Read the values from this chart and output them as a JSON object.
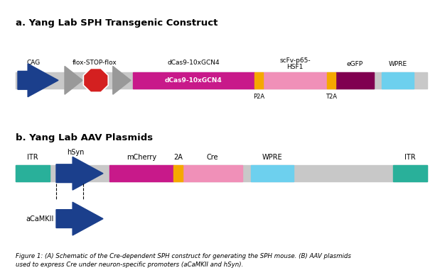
{
  "title_a": "a. Yang Lab SPH Transgenic Construct",
  "title_b": "b. Yang Lab AAV Plasmids",
  "caption": "Figure 1: (A) Schematic of the Cre-dependent SPH construct for generating the SPH mouse. (B) AAV plasmids\nused to express Cre under neuron-specific promoters (aCaMKII and hSyn).",
  "bg_color": "#ffffff",
  "gray_bar": "#c8c8c8",
  "colors": {
    "blue_arrow": "#1b3f8c",
    "gray_arrow": "#999999",
    "red_stop": "#d42020",
    "magenta": "#c8198a",
    "pink": "#f090b8",
    "dark_magenta": "#800050",
    "light_blue": "#6dd0ee",
    "teal": "#29b09a",
    "orange": "#f5a800"
  }
}
